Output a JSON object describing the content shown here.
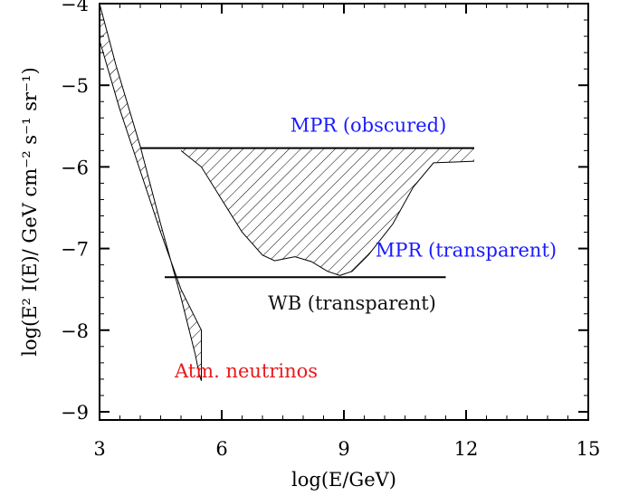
{
  "chart_data": {
    "type": "area",
    "xlabel": "log(E/GeV)",
    "ylabel": "log(E² I(E)/ GeV cm⁻² s⁻¹ sr⁻¹)",
    "xlim": [
      3,
      15
    ],
    "ylim": [
      -9.1,
      -4.0
    ],
    "xticks": [
      "3",
      "6",
      "9",
      "12",
      "15"
    ],
    "yticks": [
      "-4",
      "-5",
      "-6",
      "-7",
      "-8",
      "-9"
    ],
    "grid": false,
    "series": [
      {
        "name": "Atm. neutrinos",
        "kind": "band",
        "upper": [
          [
            3.0,
            -4.0
          ],
          [
            3.4,
            -4.75
          ],
          [
            4.0,
            -5.75
          ],
          [
            4.5,
            -6.7
          ],
          [
            5.0,
            -7.6
          ],
          [
            5.35,
            -8.3
          ],
          [
            5.45,
            -8.55
          ]
        ],
        "lower": [
          [
            3.0,
            -4.45
          ],
          [
            3.5,
            -5.3
          ],
          [
            4.0,
            -6.05
          ],
          [
            4.5,
            -6.8
          ],
          [
            5.0,
            -7.5
          ],
          [
            5.4,
            -7.9
          ],
          [
            5.5,
            -8.0
          ],
          [
            5.5,
            -8.62
          ],
          [
            5.45,
            -8.55
          ]
        ]
      },
      {
        "name": "MPR (obscured)",
        "kind": "line",
        "points": [
          [
            4.0,
            -5.77
          ],
          [
            12.2,
            -5.77
          ]
        ]
      },
      {
        "name": "MPR (transparent)",
        "kind": "band-lower",
        "points": [
          [
            5.0,
            -5.8
          ],
          [
            5.5,
            -6.0
          ],
          [
            6.0,
            -6.4
          ],
          [
            6.5,
            -6.8
          ],
          [
            7.0,
            -7.08
          ],
          [
            7.3,
            -7.15
          ],
          [
            7.6,
            -7.12
          ],
          [
            7.8,
            -7.1
          ],
          [
            8.2,
            -7.16
          ],
          [
            8.6,
            -7.28
          ],
          [
            8.9,
            -7.33
          ],
          [
            9.2,
            -7.28
          ],
          [
            9.6,
            -7.08
          ],
          [
            10.2,
            -6.7
          ],
          [
            10.7,
            -6.25
          ],
          [
            11.2,
            -5.95
          ],
          [
            12.2,
            -5.93
          ]
        ]
      },
      {
        "name": "WB (transparent)",
        "kind": "line",
        "points": [
          [
            4.6,
            -7.35
          ],
          [
            11.5,
            -7.35
          ]
        ]
      }
    ],
    "annotations": [
      {
        "text": "MPR (obscured)",
        "x": 9.6,
        "y": -5.57,
        "color": "#1a1aff"
      },
      {
        "text": "MPR (transparent)",
        "x": 12.0,
        "y": -7.1,
        "color": "#1a1aff"
      },
      {
        "text": "WB (transparent)",
        "x": 9.2,
        "y": -7.75,
        "color": "#111111"
      },
      {
        "text": "Atm. neutrinos",
        "x": 6.6,
        "y": -8.58,
        "color": "#e8191c"
      }
    ]
  }
}
